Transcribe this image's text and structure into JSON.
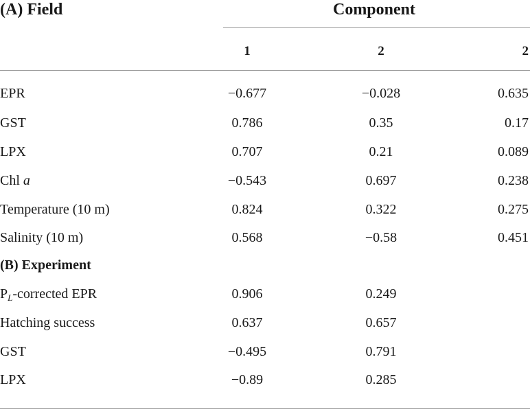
{
  "table": {
    "section_a_title": "(A) Field",
    "component_title": "Component",
    "column_headers": [
      "1",
      "2",
      "2"
    ],
    "section_a_rows": [
      {
        "label": "EPR",
        "values": [
          "−0.677",
          "−0.028",
          "0.635"
        ]
      },
      {
        "label": "GST",
        "values": [
          "0.786",
          "0.35",
          "0.17"
        ]
      },
      {
        "label": "LPX",
        "values": [
          "0.707",
          "0.21",
          "0.089"
        ]
      },
      {
        "label_main": "Chl ",
        "label_italic": "a",
        "values": [
          "−0.543",
          "0.697",
          "0.238"
        ]
      },
      {
        "label": "Temperature (10 m)",
        "values": [
          "0.824",
          "0.322",
          "0.275"
        ]
      },
      {
        "label": "Salinity (10 m)",
        "values": [
          "0.568",
          "−0.58",
          "0.451"
        ]
      }
    ],
    "section_b_title": "(B) Experiment",
    "section_b_rows": [
      {
        "label_prefix": "P",
        "label_sub": "L",
        "label_rest": "-corrected EPR",
        "values": [
          "0.906",
          "0.249"
        ]
      },
      {
        "label": "Hatching success",
        "values": [
          "0.637",
          "0.657"
        ]
      },
      {
        "label": "GST",
        "values": [
          "−0.495",
          "0.791"
        ]
      },
      {
        "label": "LPX",
        "values": [
          "−0.89",
          "0.285"
        ]
      }
    ]
  }
}
